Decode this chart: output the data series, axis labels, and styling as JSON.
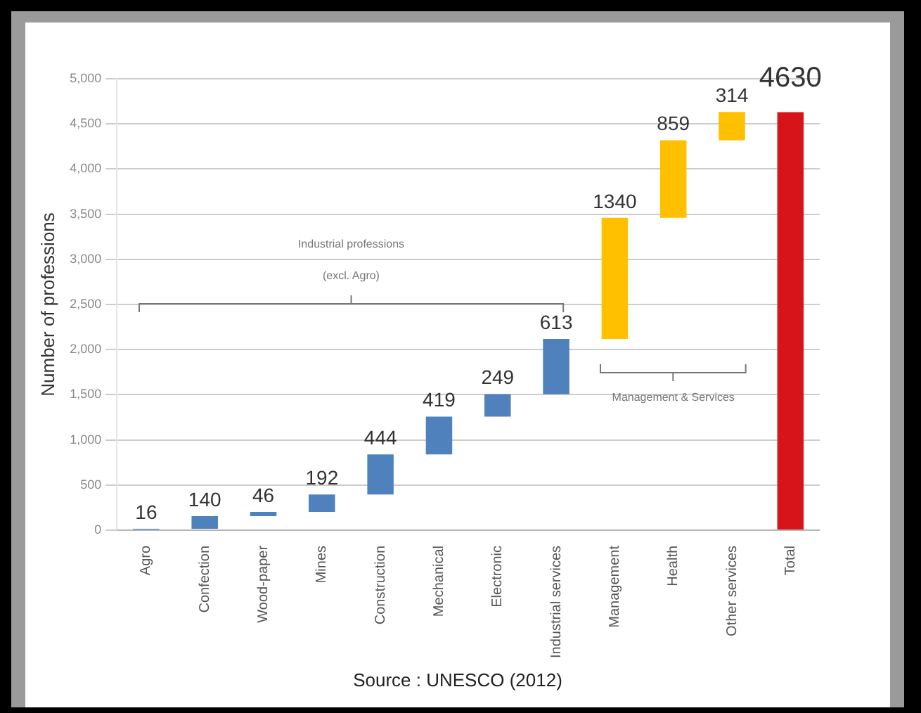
{
  "chart_data": {
    "type": "bar",
    "ylabel": "Number of professions",
    "categories": [
      "Agro",
      "Confection",
      "Wood-paper",
      "Mines",
      "Construction",
      "Mechanical",
      "Electronic",
      "Industrial services",
      "Management",
      "Health",
      "Other services",
      "Total"
    ],
    "values": [
      16,
      140,
      46,
      192,
      444,
      419,
      249,
      613,
      1340,
      859,
      314,
      4630
    ],
    "base": [
      0,
      16,
      156,
      202,
      394,
      838,
      1257,
      1506,
      2119,
      3459,
      4318,
      0
    ],
    "colors": [
      "#4f81bd",
      "#4f81bd",
      "#4f81bd",
      "#4f81bd",
      "#4f81bd",
      "#4f81bd",
      "#4f81bd",
      "#4f81bd",
      "#ffc000",
      "#ffc000",
      "#ffc000",
      "#d7141a"
    ],
    "ylim": [
      0,
      5000
    ],
    "yticks": [
      0,
      500,
      {
        "value": 1000,
        "label": "1,000"
      },
      {
        "value": 1500,
        "label": "1,500"
      },
      {
        "value": 2000,
        "label": "2,000"
      },
      {
        "value": 2500,
        "label": "2,500"
      },
      {
        "value": 3000,
        "label": "3,000"
      },
      {
        "value": 3500,
        "label": "3,500"
      },
      {
        "value": 4000,
        "label": "4,000"
      },
      {
        "value": 4500,
        "label": "4,500"
      },
      {
        "value": 5000,
        "label": "5,000"
      }
    ],
    "grid": "y",
    "data_labels": true,
    "legend": false,
    "annotations": [
      "Industrial professions",
      "(excl. Agro)",
      "Management & Services",
      "Source : UNESCO (2012)"
    ]
  }
}
